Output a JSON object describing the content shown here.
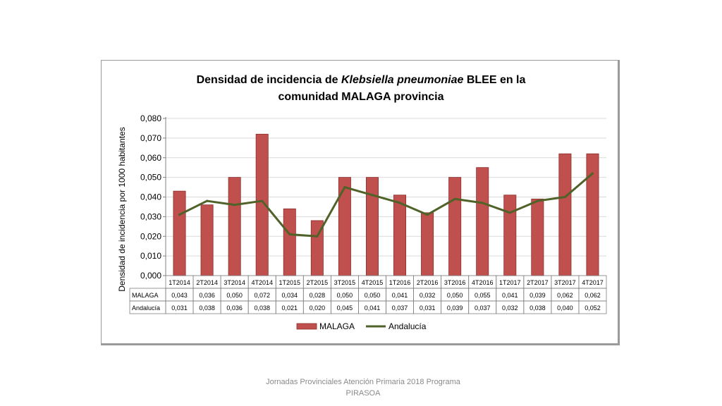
{
  "chart_data": {
    "type": "bar",
    "title": "Densidad de incidencia de Klebsiella pneumoniae BLEE en la comunidad MALAGA provincia",
    "title_line1_a": "Densidad de incidencia de ",
    "title_line1_italic": "Klebsiella pneumoniae",
    "title_line1_b": " BLEE en la",
    "title_line2": "comunidad MALAGA provincia",
    "ylabel": "Densidad de incidencia por 1000 habitantes",
    "ylim": [
      0,
      0.08
    ],
    "yticks": [
      "0,000",
      "0,010",
      "0,020",
      "0,030",
      "0,040",
      "0,050",
      "0,060",
      "0,070",
      "0,080"
    ],
    "categories": [
      "1T2014",
      "2T2014",
      "3T2014",
      "4T2014",
      "1T2015",
      "2T2015",
      "3T2015",
      "4T2015",
      "1T2016",
      "2T2016",
      "3T2016",
      "4T2016",
      "1T2017",
      "2T2017",
      "3T2017",
      "4T2017"
    ],
    "series": [
      {
        "name": "MALAGA",
        "type": "bar",
        "color": "#c0504d",
        "values": [
          0.043,
          0.036,
          0.05,
          0.072,
          0.034,
          0.028,
          0.05,
          0.05,
          0.041,
          0.032,
          0.05,
          0.055,
          0.041,
          0.039,
          0.062,
          0.062
        ],
        "labels": [
          "0,043",
          "0,036",
          "0,050",
          "0,072",
          "0,034",
          "0,028",
          "0,050",
          "0,050",
          "0,041",
          "0,032",
          "0,050",
          "0,055",
          "0,041",
          "0,039",
          "0,062",
          "0,062"
        ]
      },
      {
        "name": "Andalucía",
        "type": "line",
        "color": "#4f6228",
        "values": [
          0.031,
          0.038,
          0.036,
          0.038,
          0.021,
          0.02,
          0.045,
          0.041,
          0.037,
          0.031,
          0.039,
          0.037,
          0.032,
          0.038,
          0.04,
          0.052
        ],
        "labels": [
          "0,031",
          "0,038",
          "0,036",
          "0,038",
          "0,021",
          "0,020",
          "0,045",
          "0,041",
          "0,037",
          "0,031",
          "0,039",
          "0,037",
          "0,032",
          "0,038",
          "0,040",
          "0,052"
        ]
      }
    ],
    "legend": "bottom",
    "grid": true
  },
  "footer": {
    "line1": "Jornadas Provinciales Atención Primaria 2018  Programa",
    "line2": "PIRASOA"
  }
}
